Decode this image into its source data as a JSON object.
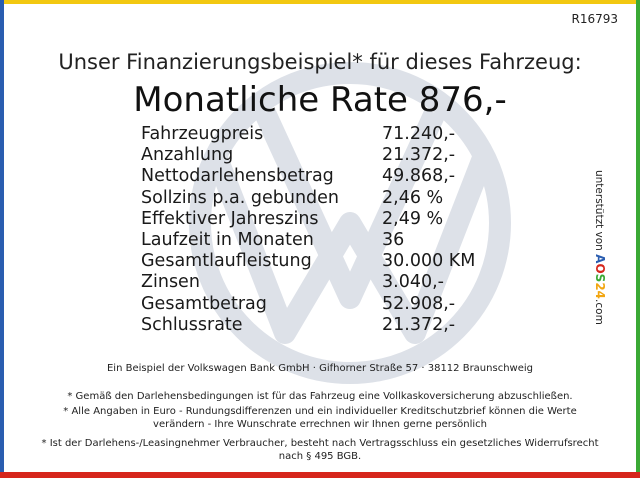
{
  "ref_code": "R16793",
  "headline": "Unser Finanzierungsbeispiel* für dieses Fahrzeug:",
  "monthly_rate": "Monatliche Rate 876,-",
  "rows": [
    {
      "label": "Fahrzeugpreis",
      "value": "71.240,-"
    },
    {
      "label": "Anzahlung",
      "value": "21.372,-"
    },
    {
      "label": "Nettodarlehensbetrag",
      "value": "49.868,-"
    },
    {
      "label": "Sollzins p.a. gebunden",
      "value": "2,46 %"
    },
    {
      "label": "Effektiver Jahreszins",
      "value": "2,49 %"
    },
    {
      "label": "Laufzeit in Monaten",
      "value": "36"
    },
    {
      "label": "Gesamtlaufleistung",
      "value": "30.000 KM"
    },
    {
      "label": "Zinsen",
      "value": "3.040,-"
    },
    {
      "label": "Gesamtbetrag",
      "value": "52.908,-"
    },
    {
      "label": "Schlussrate",
      "value": "21.372,-"
    }
  ],
  "bank_line": "Ein Beispiel der Volkswagen Bank GmbH · Gifhorner Straße 57 · 38112 Braunschweig",
  "notes": {
    "insurance": "* Gemäß den Darlehensbedingungen ist für das Fahrzeug eine Vollkaskoversicherung abzuschließen.",
    "amounts": "* Alle Angaben in Euro - Rundungsdifferenzen und ein individueller Kreditschutzbrief können die Werte verändern - Ihre Wunschrate errechnen wir Ihnen gerne persönlich",
    "revocation": "* Ist der Darlehens-/Leasingnehmer Verbraucher, besteht nach Vertragsschluss ein gesetzliches Widerrufsrecht nach § 495 BGB."
  },
  "side_text": {
    "prefix": "unterstützt von",
    "brand": "AOS24",
    "suffix": ".com"
  },
  "colors": {
    "top_bar": "#f2c811",
    "left_bar": "#2a5db0",
    "right_bar": "#3aa935",
    "bottom_bar": "#d6261c",
    "watermark": "#dde1e8"
  },
  "watermark_icon": "vw-logo-icon"
}
